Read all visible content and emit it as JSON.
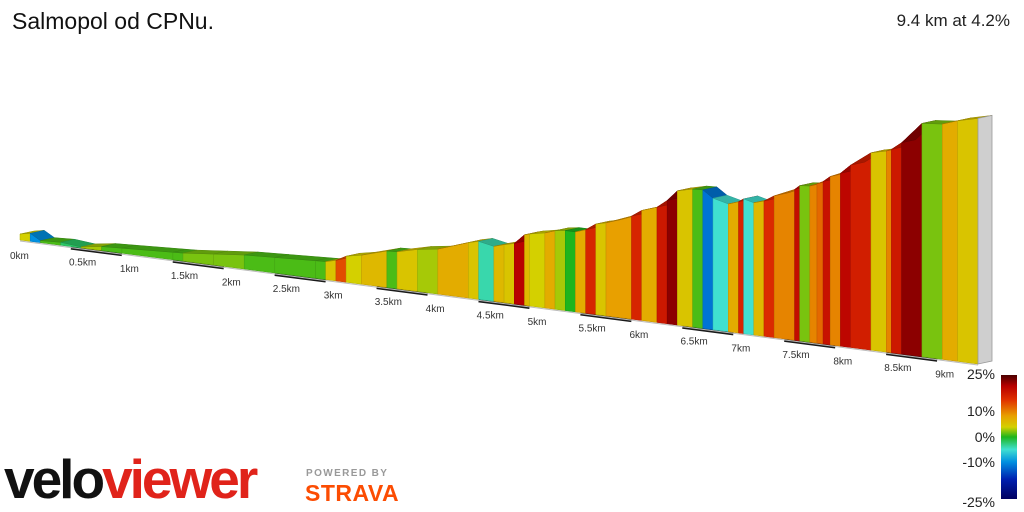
{
  "header": {
    "title": "Salmopol od CPNu.",
    "summary": "9.4 km at 4.2%"
  },
  "scale": {
    "labels": [
      "25%",
      "10%",
      "0%",
      "-10%",
      "-25%"
    ],
    "values": [
      25,
      10,
      0,
      -10,
      -25
    ]
  },
  "branding": {
    "logo_part1": "velo",
    "logo_part2": "viewer",
    "powered_by": "POWERED BY",
    "strava": "STRAVA"
  },
  "colors": {
    "logo_dark": "#111111",
    "logo_red": "#e0231a",
    "strava_orange": "#fc4c02"
  },
  "chart_data": {
    "type": "area",
    "title": "Salmopol od CPNu.",
    "xlabel": "",
    "ylabel": "",
    "x_unit": "km",
    "xlim": [
      0,
      9.4
    ],
    "tick_labels": [
      "0km",
      "0.5km",
      "1km",
      "1.5km",
      "2km",
      "2.5km",
      "3km",
      "3.5km",
      "4km",
      "4.5km",
      "5km",
      "5.5km",
      "6km",
      "6.5km",
      "7km",
      "7.5km",
      "8km",
      "8.5km",
      "9km"
    ],
    "color_scale": {
      "min": -25,
      "max": 25,
      "unit": "%"
    },
    "segments": [
      {
        "x": 0.0,
        "grade": 4
      },
      {
        "x": 0.1,
        "grade": -12
      },
      {
        "x": 0.2,
        "grade": 1
      },
      {
        "x": 0.4,
        "grade": -2
      },
      {
        "x": 0.6,
        "grade": 3
      },
      {
        "x": 0.8,
        "grade": 1
      },
      {
        "x": 1.0,
        "grade": 1
      },
      {
        "x": 1.5,
        "grade": 1
      },
      {
        "x": 1.6,
        "grade": 2
      },
      {
        "x": 1.9,
        "grade": 2
      },
      {
        "x": 2.2,
        "grade": 1
      },
      {
        "x": 2.5,
        "grade": 1
      },
      {
        "x": 2.9,
        "grade": 1
      },
      {
        "x": 3.0,
        "grade": 5
      },
      {
        "x": 3.1,
        "grade": 11
      },
      {
        "x": 3.2,
        "grade": 4
      },
      {
        "x": 3.35,
        "grade": 6
      },
      {
        "x": 3.6,
        "grade": 1
      },
      {
        "x": 3.7,
        "grade": 5
      },
      {
        "x": 3.9,
        "grade": 3
      },
      {
        "x": 4.1,
        "grade": 7
      },
      {
        "x": 4.4,
        "grade": 5
      },
      {
        "x": 4.5,
        "grade": -4
      },
      {
        "x": 4.65,
        "grade": 6
      },
      {
        "x": 4.75,
        "grade": 5
      },
      {
        "x": 4.85,
        "grade": 20
      },
      {
        "x": 4.95,
        "grade": 6
      },
      {
        "x": 5.0,
        "grade": 4
      },
      {
        "x": 5.15,
        "grade": 7
      },
      {
        "x": 5.25,
        "grade": 3
      },
      {
        "x": 5.35,
        "grade": 0
      },
      {
        "x": 5.45,
        "grade": 7
      },
      {
        "x": 5.55,
        "grade": 14
      },
      {
        "x": 5.65,
        "grade": 5
      },
      {
        "x": 5.75,
        "grade": 8
      },
      {
        "x": 6.0,
        "grade": 14
      },
      {
        "x": 6.1,
        "grade": 7
      },
      {
        "x": 6.25,
        "grade": 16
      },
      {
        "x": 6.35,
        "grade": 22
      },
      {
        "x": 6.45,
        "grade": 5
      },
      {
        "x": 6.6,
        "grade": 1
      },
      {
        "x": 6.7,
        "grade": -14
      },
      {
        "x": 6.8,
        "grade": -5
      },
      {
        "x": 6.95,
        "grade": 7
      },
      {
        "x": 7.05,
        "grade": 14
      },
      {
        "x": 7.1,
        "grade": -5
      },
      {
        "x": 7.2,
        "grade": 6
      },
      {
        "x": 7.3,
        "grade": 13
      },
      {
        "x": 7.4,
        "grade": 9
      },
      {
        "x": 7.6,
        "grade": 18
      },
      {
        "x": 7.65,
        "grade": 2
      },
      {
        "x": 7.75,
        "grade": 9
      },
      {
        "x": 7.82,
        "grade": 10
      },
      {
        "x": 7.88,
        "grade": 17
      },
      {
        "x": 7.95,
        "grade": 9
      },
      {
        "x": 8.05,
        "grade": 19
      },
      {
        "x": 8.15,
        "grade": 15
      },
      {
        "x": 8.35,
        "grade": 5
      },
      {
        "x": 8.5,
        "grade": 9
      },
      {
        "x": 8.55,
        "grade": 16
      },
      {
        "x": 8.65,
        "grade": 22
      },
      {
        "x": 8.85,
        "grade": 2
      },
      {
        "x": 9.05,
        "grade": 7
      },
      {
        "x": 9.2,
        "grade": 5
      }
    ]
  }
}
